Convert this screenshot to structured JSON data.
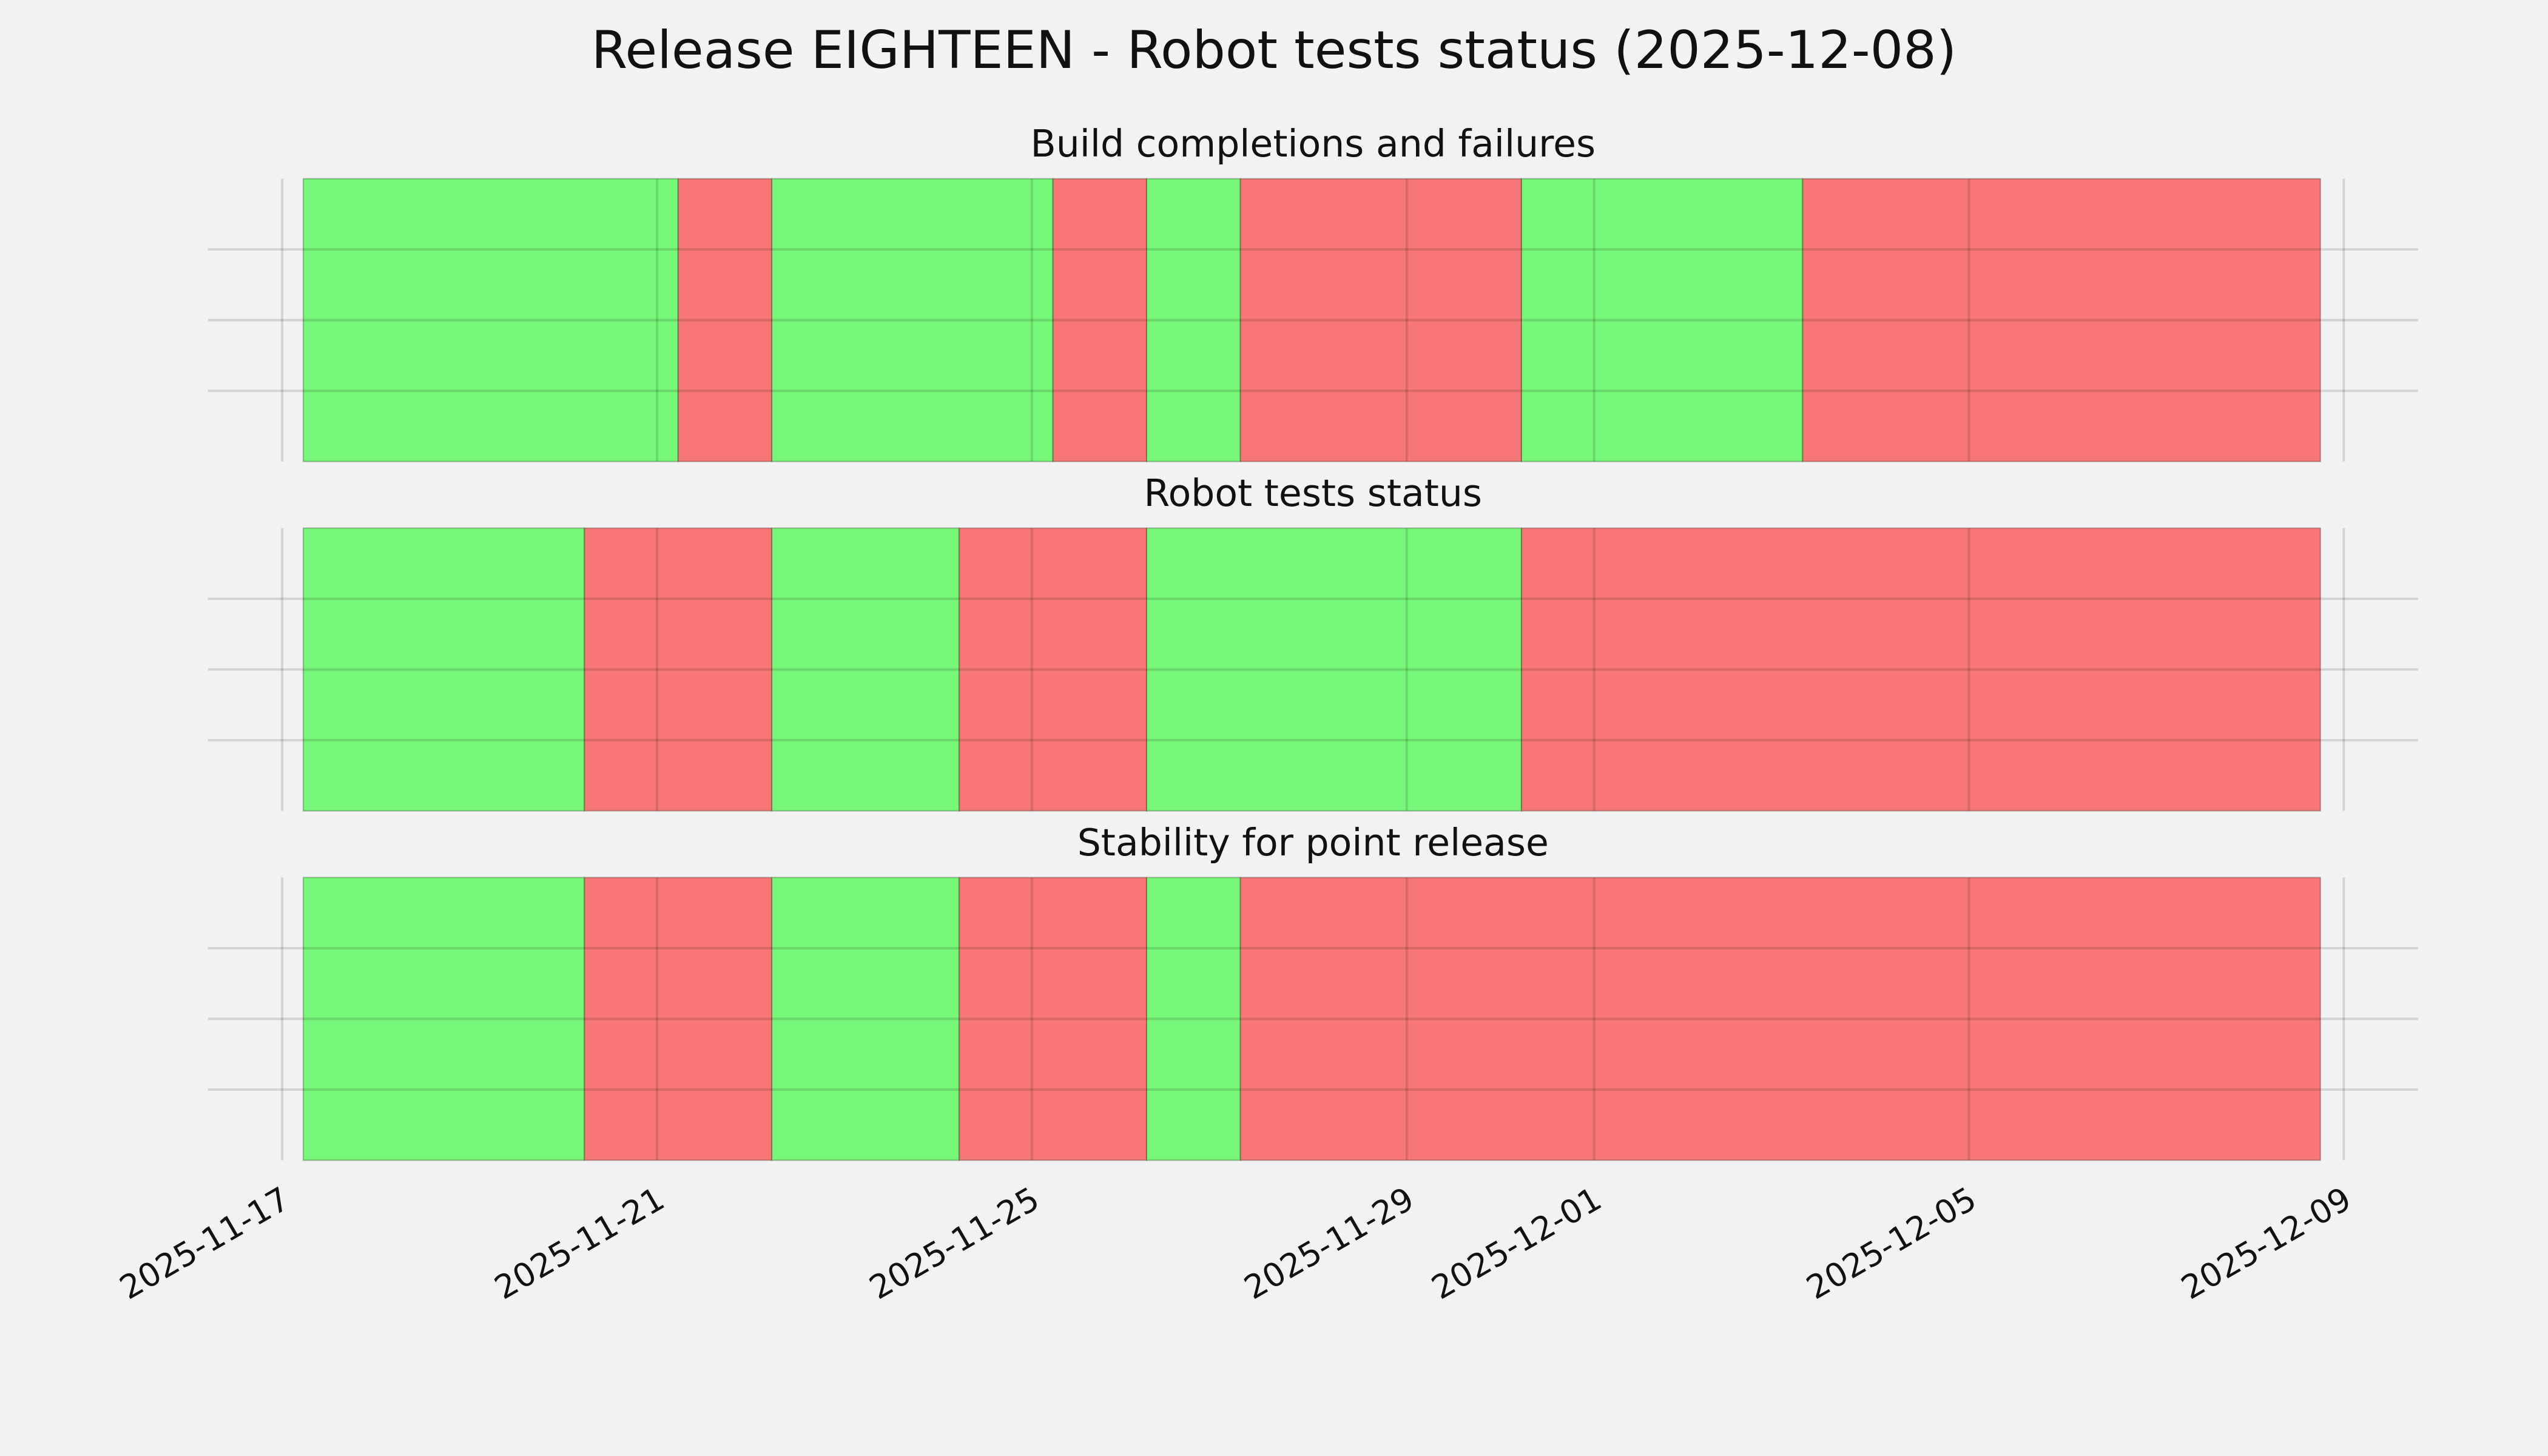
{
  "chart_data": {
    "type": "timeline",
    "title": "Release EIGHTEEN - Robot tests status (2025-12-08)",
    "xlim": [
      "2025-11-16T05:00",
      "2025-12-09T19:00"
    ],
    "xticks": [
      "2025-11-17",
      "2025-11-21",
      "2025-11-25",
      "2025-11-29",
      "2025-12-01",
      "2025-12-05",
      "2025-12-09"
    ],
    "ylim": [
      0,
      1
    ],
    "yticks": [
      0.25,
      0.5,
      0.75
    ],
    "grid": true,
    "colors": {
      "pass": "#77f777",
      "fail": "#f77777"
    },
    "panels": [
      {
        "title": "Build completions and failures",
        "segments": [
          {
            "start": "2025-11-17T05:24",
            "end": "2025-11-21T05:24",
            "status": "pass"
          },
          {
            "start": "2025-11-21T05:24",
            "end": "2025-11-22T05:24",
            "status": "fail"
          },
          {
            "start": "2025-11-22T05:24",
            "end": "2025-11-25T05:24",
            "status": "pass"
          },
          {
            "start": "2025-11-25T05:24",
            "end": "2025-11-26T05:24",
            "status": "fail"
          },
          {
            "start": "2025-11-26T05:24",
            "end": "2025-11-27T05:24",
            "status": "pass"
          },
          {
            "start": "2025-11-27T05:24",
            "end": "2025-11-30T05:24",
            "status": "fail"
          },
          {
            "start": "2025-11-30T05:24",
            "end": "2025-12-03T05:24",
            "status": "pass"
          },
          {
            "start": "2025-12-03T05:24",
            "end": "2025-12-08T18:00",
            "status": "fail"
          }
        ]
      },
      {
        "title": "Robot tests status",
        "segments": [
          {
            "start": "2025-11-17T05:24",
            "end": "2025-11-20T05:24",
            "status": "pass"
          },
          {
            "start": "2025-11-20T05:24",
            "end": "2025-11-22T05:24",
            "status": "fail"
          },
          {
            "start": "2025-11-22T05:24",
            "end": "2025-11-24T05:24",
            "status": "pass"
          },
          {
            "start": "2025-11-24T05:24",
            "end": "2025-11-26T05:24",
            "status": "fail"
          },
          {
            "start": "2025-11-26T05:24",
            "end": "2025-11-30T05:24",
            "status": "pass"
          },
          {
            "start": "2025-11-30T05:24",
            "end": "2025-12-08T18:00",
            "status": "fail"
          }
        ]
      },
      {
        "title": "Stability for point release",
        "segments": [
          {
            "start": "2025-11-17T05:24",
            "end": "2025-11-20T05:24",
            "status": "pass"
          },
          {
            "start": "2025-11-20T05:24",
            "end": "2025-11-22T05:24",
            "status": "fail"
          },
          {
            "start": "2025-11-22T05:24",
            "end": "2025-11-24T05:24",
            "status": "pass"
          },
          {
            "start": "2025-11-24T05:24",
            "end": "2025-11-26T05:24",
            "status": "fail"
          },
          {
            "start": "2025-11-26T05:24",
            "end": "2025-11-27T05:24",
            "status": "pass"
          },
          {
            "start": "2025-11-27T05:24",
            "end": "2025-12-08T18:00",
            "status": "fail"
          }
        ]
      }
    ]
  }
}
